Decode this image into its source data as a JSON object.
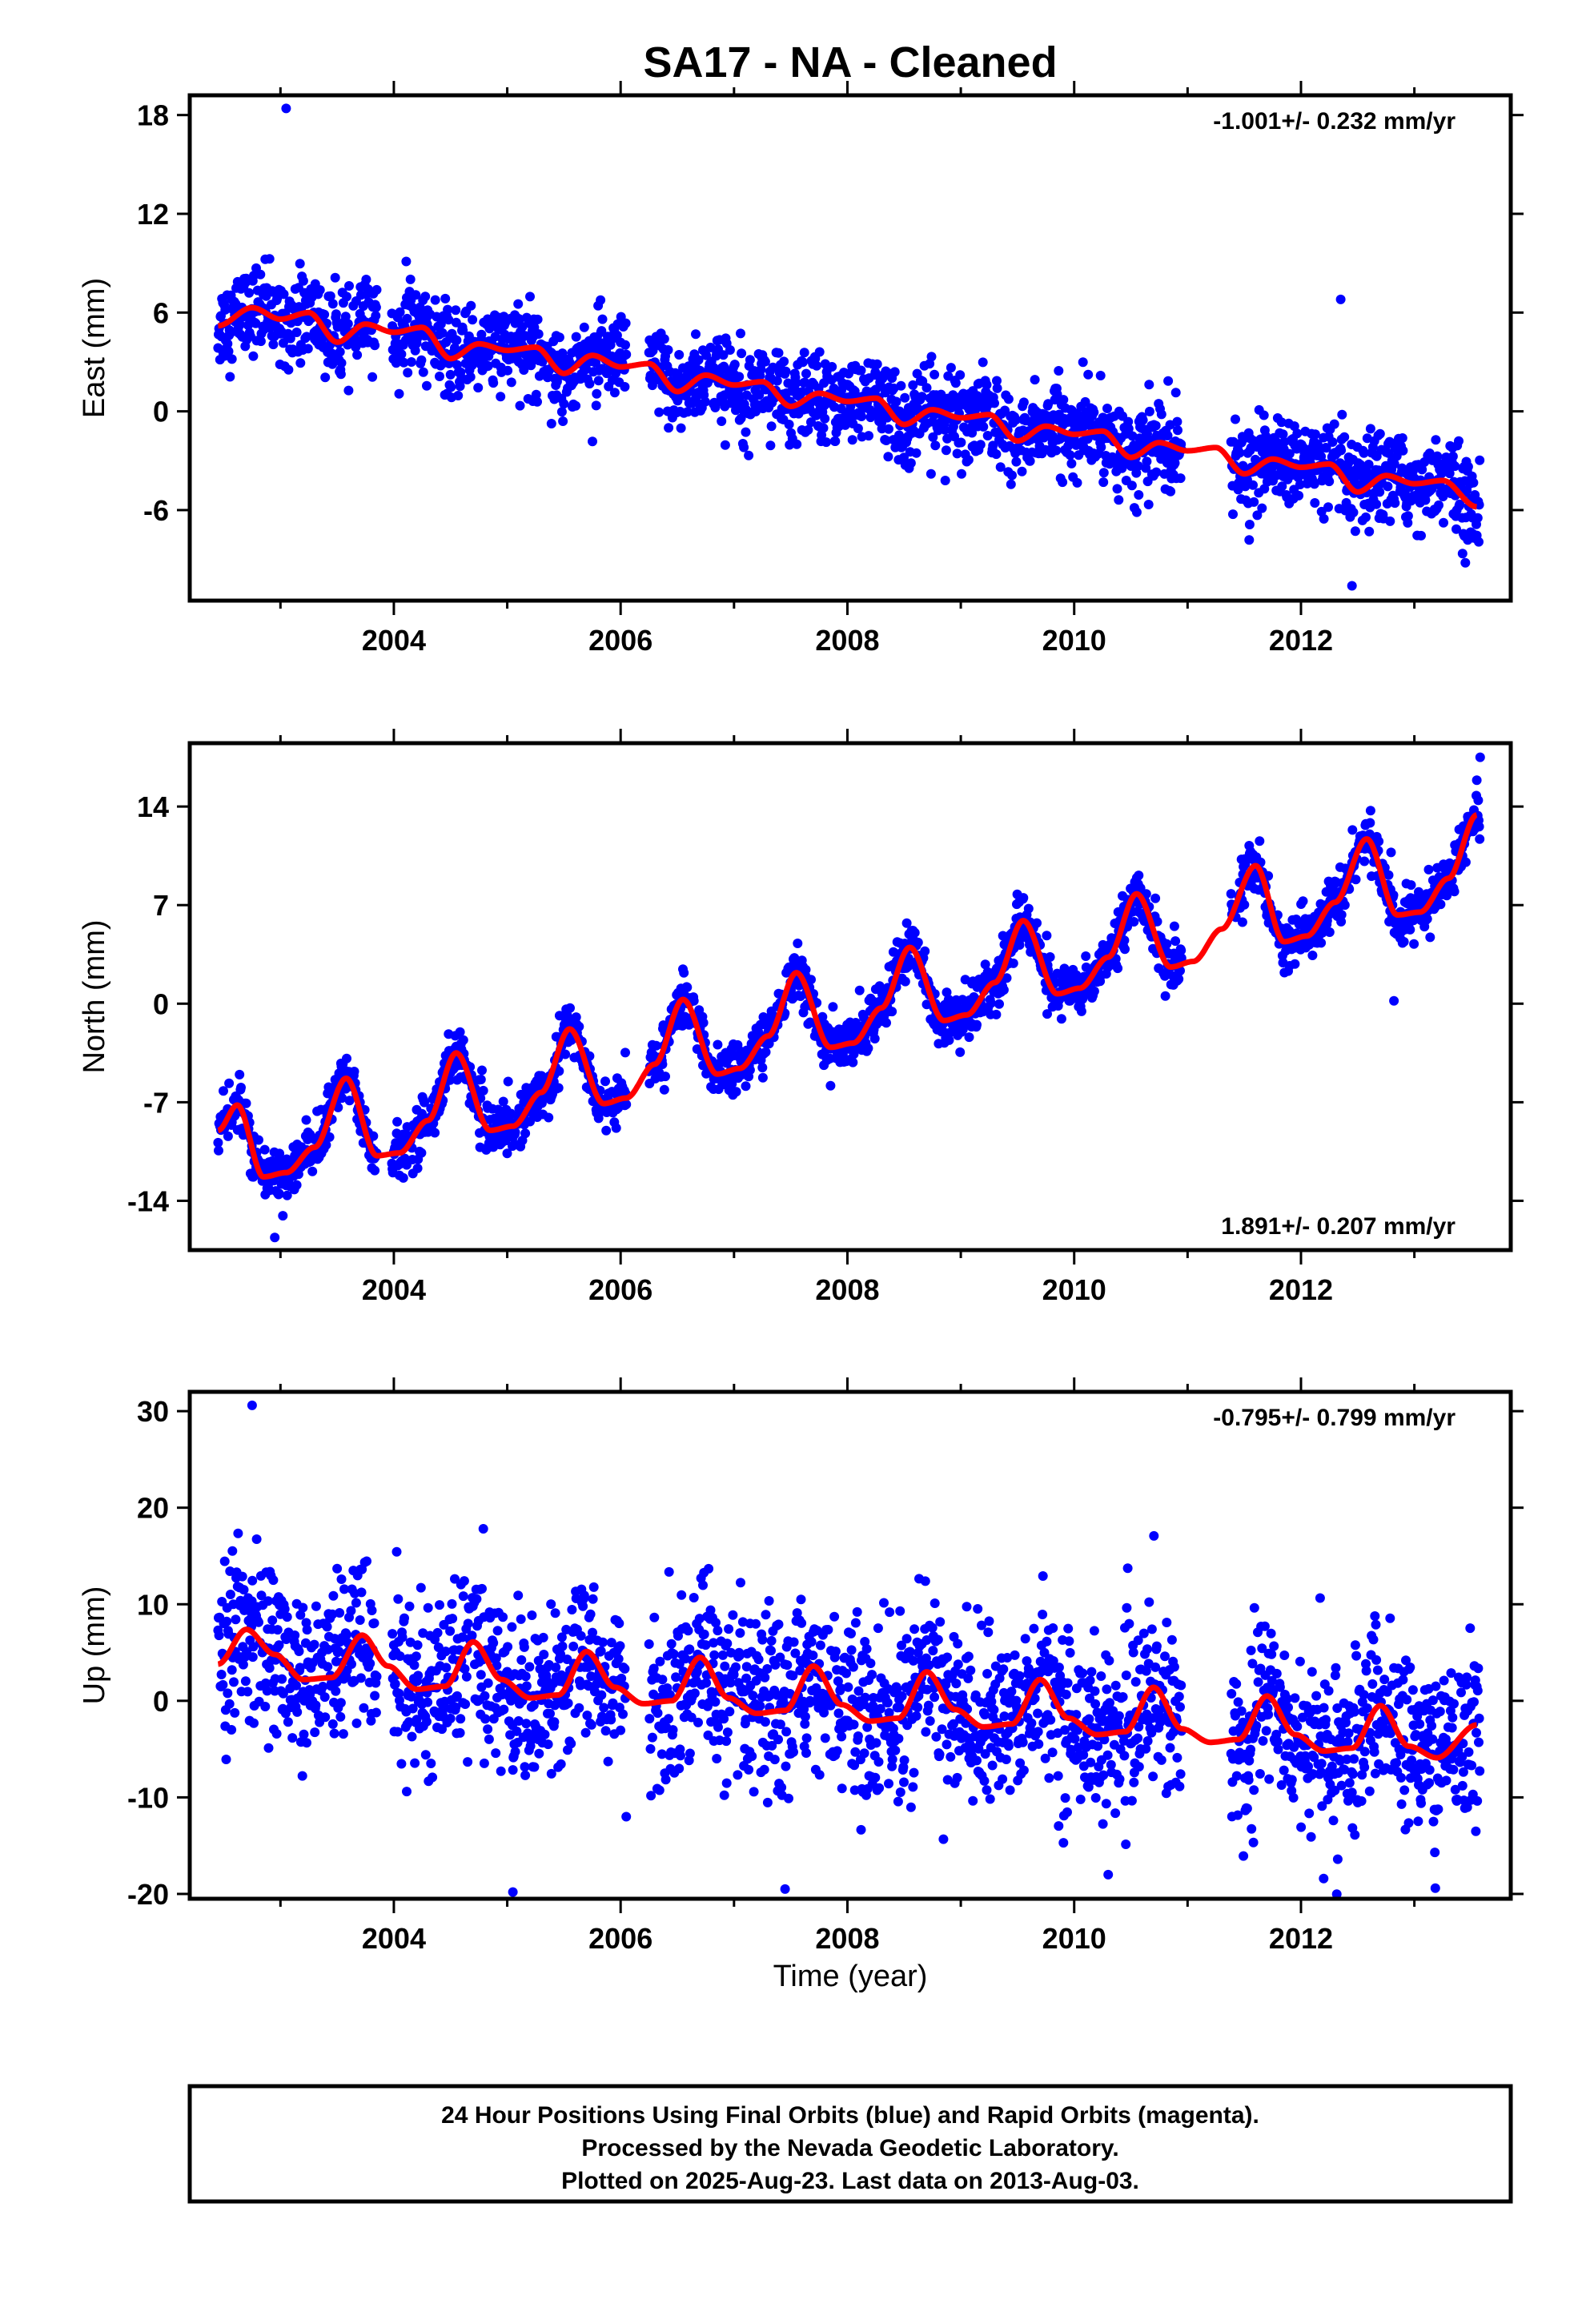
{
  "title": "SA17  - NA - Cleaned",
  "colors": {
    "points": "#0000ff",
    "model": "#ff0000",
    "frame": "#000000"
  },
  "xlabel": "Time (year)",
  "footer": {
    "line1": "24 Hour Positions Using Final Orbits (blue) and Rapid Orbits (magenta).",
    "line2": "Processed by the Nevada Geodetic Laboratory.",
    "line3": "Plotted on 2025-Aug-23. Last data on 2013-Aug-03."
  },
  "chart_data": [
    {
      "type": "scatter",
      "component": "east",
      "ylabel": "East (mm)",
      "rate_text": "-1.001+/- 0.232 mm/yr",
      "rate_position": "top-right",
      "xlim": [
        2002.2,
        2013.85
      ],
      "ylim": [
        -11.5,
        19.2
      ],
      "x_ticks": [
        2004,
        2006,
        2008,
        2010,
        2012
      ],
      "x_tick_labels": [
        "2004",
        "2006",
        "2008",
        "2010",
        "2012"
      ],
      "y_ticks": [
        18,
        12,
        6,
        0,
        -6
      ],
      "y_tick_labels": [
        "18",
        "12",
        "6",
        "0",
        "-6"
      ],
      "model": {
        "name": "fit",
        "x": [
          2002.45,
          2002.75,
          2003.0,
          2003.25,
          2003.5,
          2003.75,
          2004.0,
          2004.25,
          2004.5,
          2004.75,
          2005.0,
          2005.25,
          2005.5,
          2005.75,
          2006.0,
          2006.25,
          2006.5,
          2006.75,
          2007.0,
          2007.25,
          2007.5,
          2007.75,
          2008.0,
          2008.25,
          2008.5,
          2008.75,
          2009.0,
          2009.25,
          2009.5,
          2009.75,
          2010.0,
          2010.25,
          2010.5,
          2010.75,
          2011.0,
          2011.25,
          2011.5,
          2011.75,
          2012.0,
          2012.25,
          2012.5,
          2012.75,
          2013.0,
          2013.25,
          2013.55
        ],
        "y": [
          5.2,
          6.3,
          5.6,
          6.0,
          4.2,
          5.3,
          4.8,
          5.1,
          3.2,
          4.1,
          3.7,
          3.9,
          2.3,
          3.4,
          2.7,
          2.9,
          1.2,
          2.2,
          1.6,
          1.8,
          0.3,
          1.1,
          0.6,
          0.8,
          -0.8,
          0.1,
          -0.4,
          -0.2,
          -1.8,
          -0.9,
          -1.4,
          -1.2,
          -2.8,
          -1.9,
          -2.4,
          -2.2,
          -3.8,
          -2.9,
          -3.4,
          -3.2,
          -4.9,
          -3.9,
          -4.4,
          -4.2,
          -5.8
        ]
      },
      "scatter": {
        "noise": 1.3,
        "outliers": [
          [
            2003.05,
            18.4
          ],
          [
            2012.45,
            -10.6
          ],
          [
            2012.35,
            6.8
          ],
          [
            2013.45,
            -9.2
          ]
        ]
      }
    },
    {
      "type": "scatter",
      "component": "north",
      "ylabel": "North (mm)",
      "rate_text": "1.891+/- 0.207 mm/yr",
      "rate_position": "bottom-right",
      "xlim": [
        2002.2,
        2013.85
      ],
      "ylim": [
        -17.5,
        18.5
      ],
      "x_ticks": [
        2004,
        2006,
        2008,
        2010,
        2012
      ],
      "x_tick_labels": [
        "2004",
        "2006",
        "2008",
        "2010",
        "2012"
      ],
      "y_ticks": [
        14,
        7,
        0,
        -7,
        -14
      ],
      "y_tick_labels": [
        "14",
        "7",
        "0",
        "-7",
        "-14"
      ],
      "model": {
        "name": "fit",
        "x": [
          2002.45,
          2002.62,
          2002.85,
          2003.05,
          2003.3,
          2003.58,
          2003.85,
          2004.05,
          2004.3,
          2004.55,
          2004.85,
          2005.05,
          2005.3,
          2005.55,
          2005.85,
          2006.05,
          2006.3,
          2006.55,
          2006.85,
          2007.05,
          2007.3,
          2007.55,
          2007.85,
          2008.05,
          2008.3,
          2008.55,
          2008.85,
          2009.05,
          2009.3,
          2009.55,
          2009.85,
          2010.05,
          2010.3,
          2010.55,
          2010.85,
          2011.05,
          2011.3,
          2011.6,
          2011.85,
          2012.05,
          2012.3,
          2012.58,
          2012.85,
          2013.05,
          2013.3,
          2013.55
        ],
        "y": [
          -9.0,
          -7.2,
          -12.3,
          -12.0,
          -10.2,
          -5.3,
          -10.8,
          -10.6,
          -8.3,
          -3.5,
          -9.0,
          -8.7,
          -6.3,
          -1.8,
          -7.1,
          -6.7,
          -4.3,
          0.3,
          -5.0,
          -4.6,
          -2.3,
          2.2,
          -3.1,
          -2.8,
          -0.3,
          4.0,
          -1.2,
          -0.8,
          1.5,
          5.9,
          0.7,
          1.1,
          3.3,
          7.8,
          2.6,
          3.0,
          5.3,
          9.8,
          4.4,
          4.8,
          7.2,
          11.7,
          6.3,
          6.5,
          8.9,
          13.4
        ]
      },
      "scatter": {
        "noise": 0.9,
        "outliers": [
          [
            2002.95,
            -16.6
          ],
          [
            2012.82,
            0.2
          ],
          [
            2013.58,
            17.5
          ]
        ]
      }
    },
    {
      "type": "scatter",
      "component": "up",
      "ylabel": "Up (mm)",
      "rate_text": "-0.795+/- 0.799 mm/yr",
      "rate_position": "top-right",
      "xlim": [
        2002.2,
        2013.85
      ],
      "ylim": [
        -20.5,
        32.0
      ],
      "x_ticks": [
        2004,
        2006,
        2008,
        2010,
        2012
      ],
      "x_tick_labels": [
        "2004",
        "2006",
        "2008",
        "2010",
        "2012"
      ],
      "y_ticks": [
        30,
        20,
        10,
        0,
        -10,
        -20
      ],
      "y_tick_labels": [
        "30",
        "20",
        "10",
        "0",
        "-10",
        "-20"
      ],
      "model": {
        "name": "fit",
        "x": [
          2002.45,
          2002.7,
          2002.95,
          2003.2,
          2003.45,
          2003.72,
          2003.95,
          2004.2,
          2004.45,
          2004.7,
          2004.95,
          2005.2,
          2005.45,
          2005.7,
          2005.95,
          2006.2,
          2006.45,
          2006.7,
          2006.95,
          2007.2,
          2007.45,
          2007.7,
          2007.95,
          2008.2,
          2008.45,
          2008.7,
          2008.95,
          2009.2,
          2009.45,
          2009.7,
          2009.95,
          2010.2,
          2010.45,
          2010.7,
          2010.95,
          2011.2,
          2011.45,
          2011.7,
          2011.95,
          2012.2,
          2012.45,
          2012.7,
          2012.95,
          2013.2,
          2013.55
        ],
        "y": [
          3.8,
          7.4,
          4.8,
          2.2,
          2.4,
          6.8,
          3.6,
          1.2,
          1.5,
          6.1,
          2.2,
          0.3,
          0.6,
          5.1,
          1.4,
          -0.3,
          0.0,
          4.5,
          0.3,
          -1.3,
          -1.0,
          3.6,
          -0.4,
          -2.1,
          -1.8,
          3.0,
          -0.9,
          -2.7,
          -2.4,
          2.2,
          -1.8,
          -3.5,
          -3.2,
          1.4,
          -2.9,
          -4.3,
          -4.0,
          0.5,
          -3.5,
          -5.2,
          -4.9,
          -0.5,
          -4.7,
          -5.9,
          -2.5
        ]
      },
      "scatter": {
        "noise": 4.4,
        "outliers": [
          [
            2002.75,
            30.6
          ],
          [
            2005.05,
            -19.8
          ],
          [
            2007.45,
            -19.5
          ],
          [
            2010.3,
            -18.0
          ],
          [
            2012.2,
            -18.4
          ]
        ]
      }
    }
  ]
}
